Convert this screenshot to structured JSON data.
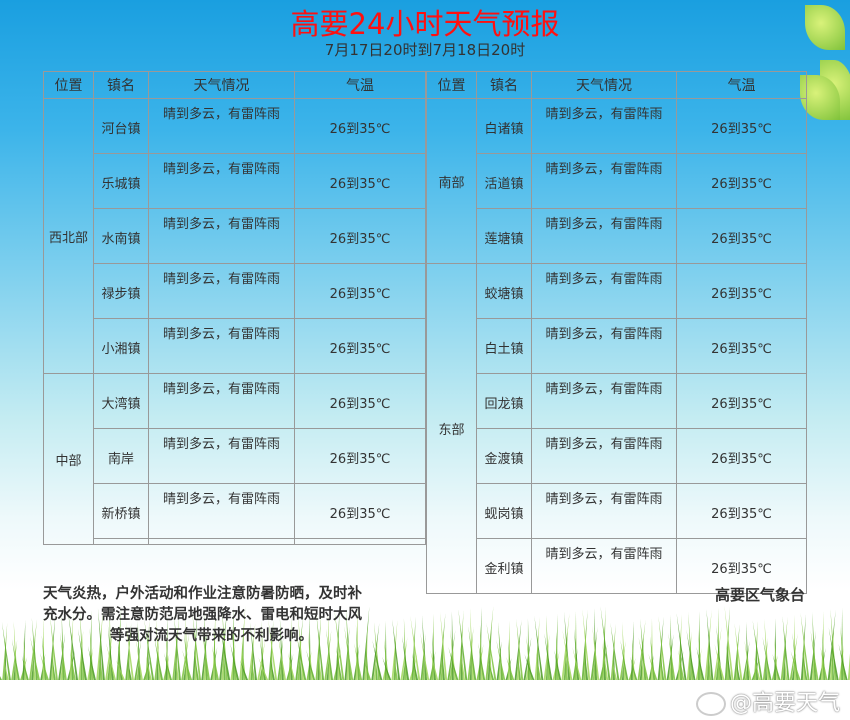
{
  "title": "高要24小时天气预报",
  "subtitle": "7月17日20时到7月18日20时",
  "headers": [
    "位置",
    "镇名",
    "天气情况",
    "气温"
  ],
  "left": [
    {
      "region": "西北部",
      "towns": [
        {
          "name": "河台镇",
          "weather": "晴到多云，有雷阵雨",
          "temp": "26到35℃"
        },
        {
          "name": "乐城镇",
          "weather": "晴到多云，有雷阵雨",
          "temp": "26到35℃"
        },
        {
          "name": "水南镇",
          "weather": "晴到多云，有雷阵雨",
          "temp": "26到35℃"
        },
        {
          "name": "禄步镇",
          "weather": "晴到多云，有雷阵雨",
          "temp": "26到35℃"
        },
        {
          "name": "小湘镇",
          "weather": "晴到多云，有雷阵雨",
          "temp": "26到35℃"
        }
      ]
    },
    {
      "region": "中部",
      "towns": [
        {
          "name": "大湾镇",
          "weather": "晴到多云，有雷阵雨",
          "temp": "26到35℃"
        },
        {
          "name": "南岸",
          "weather": "晴到多云，有雷阵雨",
          "temp": "26到35℃"
        },
        {
          "name": "新桥镇",
          "weather": "晴到多云，有雷阵雨",
          "temp": "26到35℃"
        }
      ]
    }
  ],
  "right": [
    {
      "region": "南部",
      "towns": [
        {
          "name": "白诸镇",
          "weather": "晴到多云，有雷阵雨",
          "temp": "26到35℃"
        },
        {
          "name": "活道镇",
          "weather": "晴到多云，有雷阵雨",
          "temp": "26到35℃"
        },
        {
          "name": "莲塘镇",
          "weather": "晴到多云，有雷阵雨",
          "temp": "26到35℃"
        }
      ]
    },
    {
      "region": "东部",
      "towns": [
        {
          "name": "蛟塘镇",
          "weather": "晴到多云，有雷阵雨",
          "temp": "26到35℃"
        },
        {
          "name": "白土镇",
          "weather": "晴到多云，有雷阵雨",
          "temp": "26到35℃"
        },
        {
          "name": "回龙镇",
          "weather": "晴到多云，有雷阵雨",
          "temp": "26到35℃"
        },
        {
          "name": "金渡镇",
          "weather": "晴到多云，有雷阵雨",
          "temp": "26到35℃"
        },
        {
          "name": "蚬岗镇",
          "weather": "晴到多云，有雷阵雨",
          "temp": "26到35℃"
        },
        {
          "name": "金利镇",
          "weather": "晴到多云，有雷阵雨",
          "temp": "26到35℃"
        }
      ]
    }
  ],
  "notice": [
    "天气炎热，户外活动和作业注意防暑防晒，及时补",
    "充水分。需注意防范局地强降水、雷电和短时大风",
    "等强对流天气带来的不利影响。"
  ],
  "org": "高要区气象台",
  "watermark": "@高要天气",
  "colors": {
    "title": "#ff1010",
    "sky": "#1a9fe0",
    "grass": "#6ab833"
  }
}
